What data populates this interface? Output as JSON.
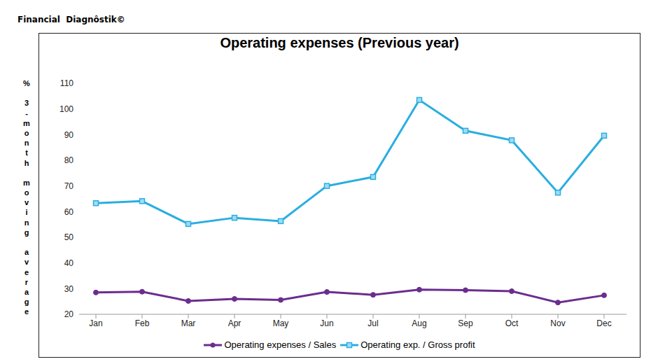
{
  "chart_data": {
    "type": "line",
    "header": "Financial  Diagnôstik©",
    "title": "Operating expenses (Previous year)",
    "y_label": "% 3-month moving average",
    "categories": [
      "Jan",
      "Feb",
      "Mar",
      "Apr",
      "May",
      "Jun",
      "Jul",
      "Aug",
      "Sep",
      "Oct",
      "Nov",
      "Dec"
    ],
    "ylim": [
      20,
      110
    ],
    "yticks": [
      20,
      30,
      40,
      50,
      60,
      70,
      80,
      90,
      100,
      110
    ],
    "grid": false,
    "legend": "bottom",
    "series": [
      {
        "name": "Operating expenses / Sales",
        "color": "#6b2d8f",
        "marker": "circle",
        "values": [
          28.5,
          28.8,
          25.2,
          26.0,
          25.6,
          28.7,
          27.6,
          29.6,
          29.4,
          29.0,
          24.6,
          27.4
        ]
      },
      {
        "name": "Operating exp. / Gross profit",
        "color": "#2aaee0",
        "marker": "square",
        "values": [
          63.3,
          64.1,
          55.2,
          57.6,
          56.3,
          70.0,
          73.5,
          103.5,
          91.5,
          87.8,
          67.4,
          89.6
        ]
      }
    ]
  }
}
